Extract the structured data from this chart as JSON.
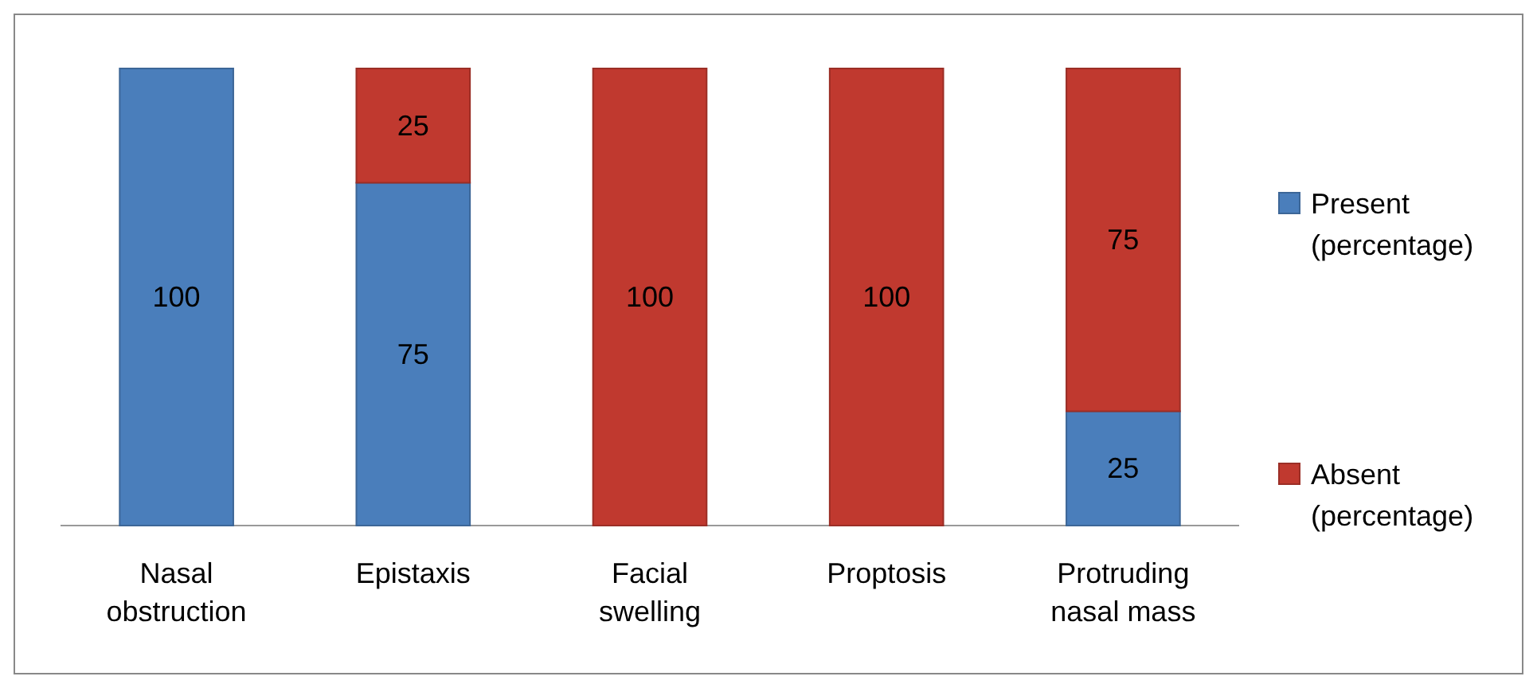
{
  "chart_data": {
    "type": "bar",
    "stacked": true,
    "data_labels": true,
    "legend": "right",
    "grid": false,
    "categories": [
      "Nasal obstruction",
      "Epistaxis",
      "Facial swelling",
      "Proptosis",
      "Protruding nasal mass"
    ],
    "series": [
      {
        "name": "Present (percentage)",
        "color": "#4a7ebb",
        "values": [
          100,
          75,
          null,
          null,
          25
        ]
      },
      {
        "name": "Absent (percentage)",
        "color": "#c0392f",
        "values": [
          null,
          25,
          100,
          100,
          75
        ]
      }
    ]
  }
}
